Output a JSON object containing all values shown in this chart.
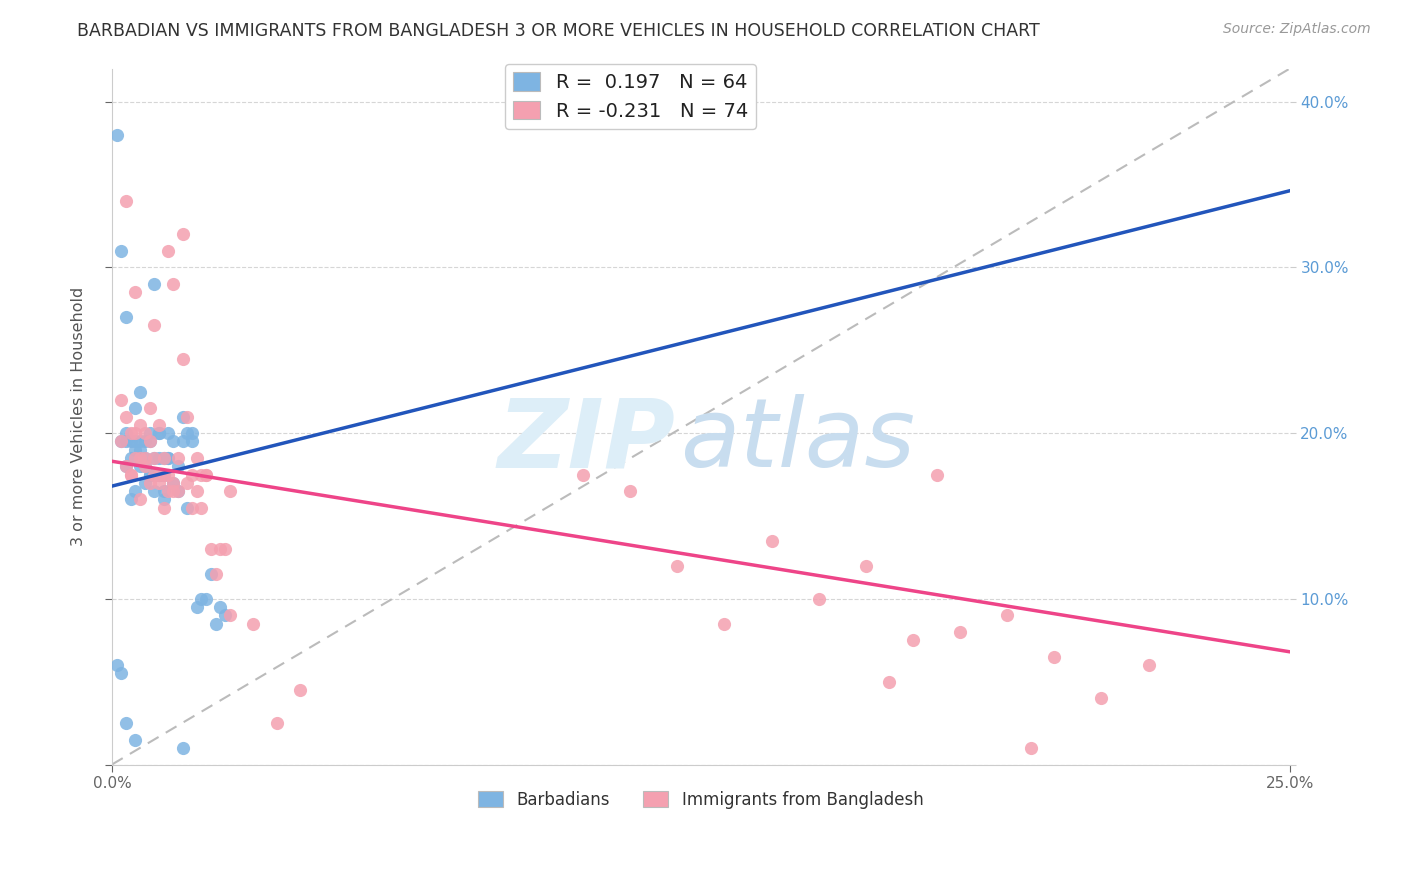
{
  "title": "BARBADIAN VS IMMIGRANTS FROM BANGLADESH 3 OR MORE VEHICLES IN HOUSEHOLD CORRELATION CHART",
  "source": "Source: ZipAtlas.com",
  "ylabel": "3 or more Vehicles in Household",
  "xlim": [
    0.0,
    0.25
  ],
  "ylim": [
    0.0,
    0.42
  ],
  "R_blue": 0.197,
  "N_blue": 64,
  "R_pink": -0.231,
  "N_pink": 74,
  "color_blue": "#7EB4E2",
  "color_pink": "#F4A0B0",
  "trend_blue": "#2255BB",
  "trend_pink": "#EE4488",
  "trend_dash_color": "#BBBBBB",
  "background_color": "#FFFFFF",
  "blue_trend_x0": 0.0,
  "blue_trend_y0": 0.168,
  "blue_trend_x1": 0.115,
  "blue_trend_y1": 0.25,
  "pink_trend_x0": 0.0,
  "pink_trend_y0": 0.183,
  "pink_trend_x1": 0.25,
  "pink_trend_y1": 0.068,
  "blue_dots_x": [
    0.002,
    0.003,
    0.003,
    0.004,
    0.005,
    0.005,
    0.006,
    0.006,
    0.007,
    0.007,
    0.008,
    0.008,
    0.009,
    0.009,
    0.01,
    0.01,
    0.011,
    0.011,
    0.012,
    0.012,
    0.013,
    0.013,
    0.014,
    0.014,
    0.015,
    0.015,
    0.016,
    0.016,
    0.017,
    0.017,
    0.003,
    0.004,
    0.005,
    0.006,
    0.007,
    0.008,
    0.009,
    0.01,
    0.011,
    0.012,
    0.002,
    0.003,
    0.004,
    0.005,
    0.006,
    0.007,
    0.008,
    0.009,
    0.01,
    0.011,
    0.019,
    0.021,
    0.023,
    0.024,
    0.018,
    0.02,
    0.022,
    0.001,
    0.001,
    0.002,
    0.003,
    0.005,
    0.015,
    0.01
  ],
  "blue_dots_y": [
    0.31,
    0.27,
    0.2,
    0.195,
    0.215,
    0.19,
    0.225,
    0.18,
    0.185,
    0.195,
    0.2,
    0.175,
    0.29,
    0.185,
    0.2,
    0.175,
    0.165,
    0.185,
    0.2,
    0.185,
    0.17,
    0.195,
    0.18,
    0.165,
    0.21,
    0.195,
    0.2,
    0.155,
    0.2,
    0.195,
    0.195,
    0.185,
    0.195,
    0.195,
    0.18,
    0.195,
    0.175,
    0.185,
    0.175,
    0.185,
    0.195,
    0.18,
    0.16,
    0.165,
    0.19,
    0.17,
    0.175,
    0.165,
    0.175,
    0.16,
    0.1,
    0.115,
    0.095,
    0.09,
    0.095,
    0.1,
    0.085,
    0.38,
    0.06,
    0.055,
    0.025,
    0.015,
    0.01,
    0.2
  ],
  "pink_dots_x": [
    0.002,
    0.003,
    0.004,
    0.005,
    0.006,
    0.007,
    0.008,
    0.009,
    0.01,
    0.011,
    0.012,
    0.013,
    0.014,
    0.015,
    0.016,
    0.017,
    0.018,
    0.019,
    0.02,
    0.021,
    0.002,
    0.003,
    0.004,
    0.005,
    0.006,
    0.007,
    0.008,
    0.009,
    0.01,
    0.011,
    0.012,
    0.013,
    0.003,
    0.004,
    0.005,
    0.006,
    0.007,
    0.008,
    0.009,
    0.01,
    0.011,
    0.012,
    0.013,
    0.014,
    0.015,
    0.016,
    0.017,
    0.018,
    0.019,
    0.02,
    0.022,
    0.023,
    0.024,
    0.025,
    0.1,
    0.11,
    0.12,
    0.13,
    0.14,
    0.15,
    0.16,
    0.17,
    0.18,
    0.19,
    0.2,
    0.21,
    0.22,
    0.195,
    0.175,
    0.165,
    0.025,
    0.03,
    0.035,
    0.04
  ],
  "pink_dots_y": [
    0.22,
    0.21,
    0.2,
    0.2,
    0.185,
    0.2,
    0.215,
    0.175,
    0.205,
    0.185,
    0.165,
    0.17,
    0.165,
    0.245,
    0.17,
    0.155,
    0.165,
    0.155,
    0.175,
    0.13,
    0.195,
    0.18,
    0.175,
    0.185,
    0.16,
    0.185,
    0.17,
    0.185,
    0.175,
    0.155,
    0.175,
    0.165,
    0.34,
    0.175,
    0.285,
    0.205,
    0.18,
    0.195,
    0.265,
    0.17,
    0.175,
    0.31,
    0.29,
    0.185,
    0.32,
    0.21,
    0.175,
    0.185,
    0.175,
    0.175,
    0.115,
    0.13,
    0.13,
    0.165,
    0.175,
    0.165,
    0.12,
    0.085,
    0.135,
    0.1,
    0.12,
    0.075,
    0.08,
    0.09,
    0.065,
    0.04,
    0.06,
    0.01,
    0.175,
    0.05,
    0.09,
    0.085,
    0.025,
    0.045
  ]
}
